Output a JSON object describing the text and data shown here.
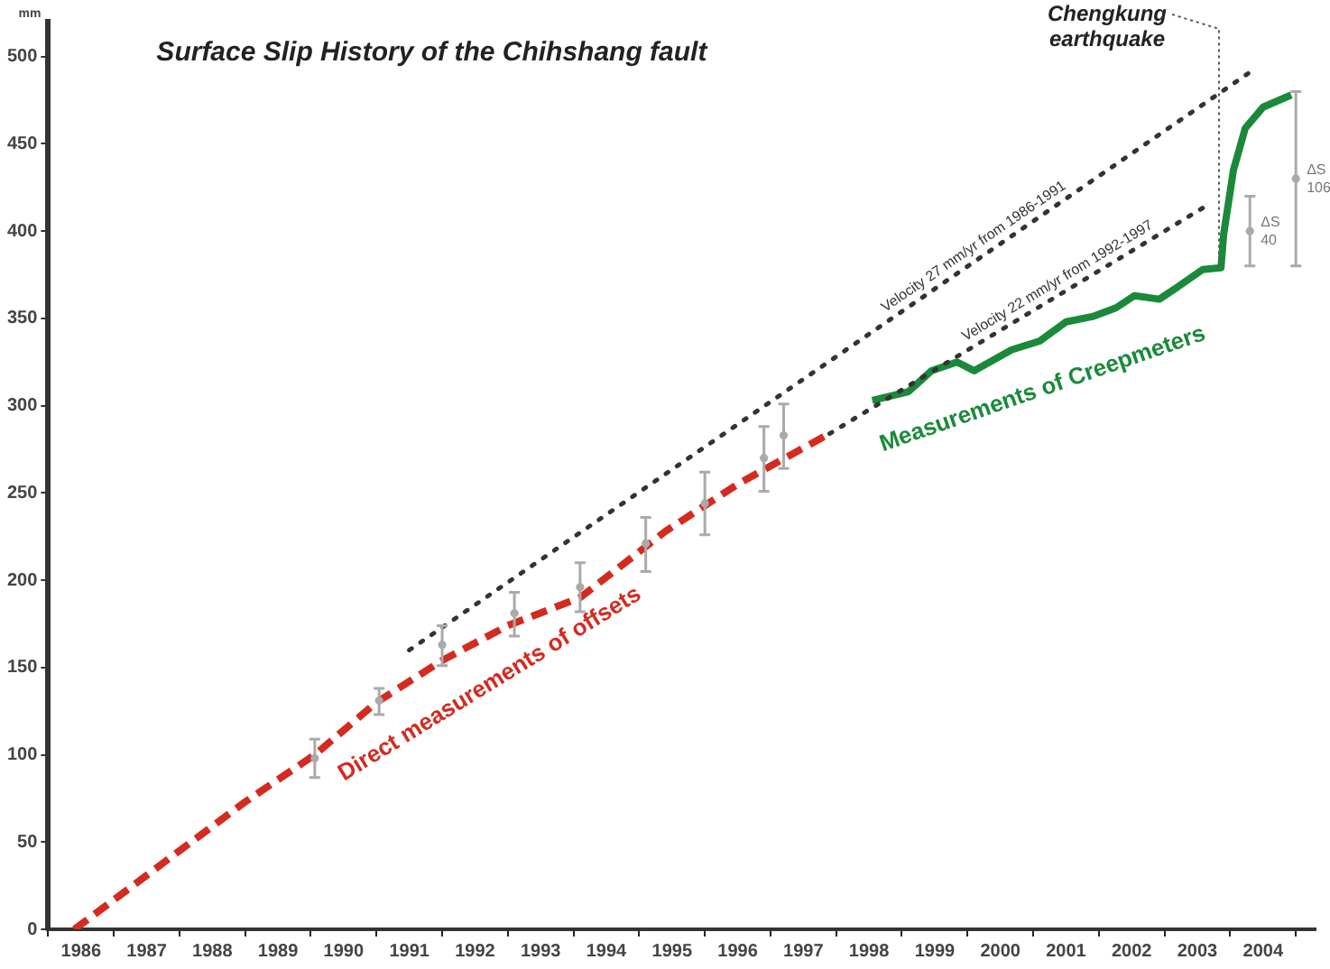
{
  "chart_data": {
    "type": "line",
    "title": "Surface Slip History of the Chihshang fault",
    "ylabel": "mm",
    "xlim": [
      1986,
      2005.3
    ],
    "xticks": [
      {
        "value": 1986,
        "label": null
      },
      {
        "value": 1986.5,
        "label": "1986"
      },
      {
        "value": 1987,
        "label": null
      },
      {
        "value": 1987.5,
        "label": "1987"
      },
      {
        "value": 1988,
        "label": null
      },
      {
        "value": 1988.5,
        "label": "1988"
      },
      {
        "value": 1989,
        "label": null
      },
      {
        "value": 1989.5,
        "label": "1989"
      },
      {
        "value": 1990,
        "label": null
      },
      {
        "value": 1990.5,
        "label": "1990"
      },
      {
        "value": 1991,
        "label": null
      },
      {
        "value": 1991.5,
        "label": "1991"
      },
      {
        "value": 1992,
        "label": null
      },
      {
        "value": 1992.5,
        "label": "1992"
      },
      {
        "value": 1993,
        "label": null
      },
      {
        "value": 1993.5,
        "label": "1993"
      },
      {
        "value": 1994,
        "label": null
      },
      {
        "value": 1994.5,
        "label": "1994"
      },
      {
        "value": 1995,
        "label": null
      },
      {
        "value": 1995.5,
        "label": "1995"
      },
      {
        "value": 1996,
        "label": null
      },
      {
        "value": 1996.5,
        "label": "1996"
      },
      {
        "value": 1997,
        "label": null
      },
      {
        "value": 1997.5,
        "label": "1997"
      },
      {
        "value": 1998,
        "label": null
      },
      {
        "value": 1998.5,
        "label": "1998"
      },
      {
        "value": 1999,
        "label": null
      },
      {
        "value": 1999.5,
        "label": "1999"
      },
      {
        "value": 2000,
        "label": null
      },
      {
        "value": 2000.5,
        "label": "2000"
      },
      {
        "value": 2001,
        "label": null
      },
      {
        "value": 2001.5,
        "label": "2001"
      },
      {
        "value": 2002,
        "label": null
      },
      {
        "value": 2002.5,
        "label": "2002"
      },
      {
        "value": 2003,
        "label": null
      },
      {
        "value": 2003.5,
        "label": "2003"
      },
      {
        "value": 2004,
        "label": null
      },
      {
        "value": 2004.5,
        "label": "2004"
      },
      {
        "value": 2005,
        "label": null
      }
    ],
    "ylim": [
      0,
      520
    ],
    "yticks": [
      0,
      50,
      100,
      150,
      200,
      250,
      300,
      350,
      400,
      450,
      500
    ],
    "series": [
      {
        "name": "Direct measurements of offsets",
        "color": "#d42a20",
        "line_style": "dashed",
        "x": [
          1986.4,
          1988,
          1989,
          1990.06,
          1991,
          1992,
          1993,
          1994.1,
          1995.4,
          1996.5,
          1997.9
        ],
        "values": [
          0,
          45,
          73,
          100,
          130,
          154,
          174,
          190,
          228,
          255,
          284
        ]
      },
      {
        "type": "scatter",
        "color": "#aaaaaa",
        "x": [
          1990.06,
          1991.04,
          1992,
          1993.1,
          1994.1,
          1995.1,
          1996,
          1996.9,
          1997.2
        ],
        "values": [
          98,
          131,
          163,
          181,
          196,
          221,
          244,
          270,
          283
        ],
        "errors": [
          [
            87,
            109
          ],
          [
            123,
            138
          ],
          [
            151,
            174
          ],
          [
            168,
            193
          ],
          [
            182,
            210
          ],
          [
            205,
            236
          ],
          [
            226,
            262
          ],
          [
            251,
            288
          ],
          [
            264,
            301
          ]
        ]
      },
      {
        "name": "Velocity 27 mm/yr from 1986-1991",
        "color": "#333333",
        "line_style": "dotted",
        "x": [
          1991.5,
          2004.3
        ],
        "values": [
          160,
          491
        ]
      },
      {
        "name": "Velocity 22 mm/yr from 1992-1997",
        "color": "#333333",
        "line_style": "dotted",
        "x": [
          1997.9,
          2003.66
        ],
        "values": [
          284,
          415
        ]
      },
      {
        "name": "Measurements of Creepmeters",
        "color": "#1a8a3a",
        "line_style": "solid",
        "x": [
          1998.55,
          1999.1,
          1999.45,
          1999.84,
          2000.1,
          2000.67,
          2001.1,
          2001.5,
          2001.9,
          2002.26,
          2002.54,
          2002.92,
          2003.2,
          2003.58,
          2003.86,
          2003.9,
          2004.05,
          2004.23,
          2004.5,
          2004.93
        ],
        "values": [
          303,
          308,
          320,
          325,
          320,
          332,
          337,
          348,
          351,
          356,
          363,
          361,
          368,
          378,
          379,
          398,
          435,
          459,
          471,
          478
        ]
      },
      {
        "type": "scatter",
        "color": "#aaaaaa",
        "x": [
          2004.3,
          2005
        ],
        "values": [
          400,
          430
        ],
        "errors": [
          [
            380,
            420
          ],
          [
            380,
            480
          ]
        ]
      }
    ],
    "annotations": [
      {
        "text": "Chengkung earthquake",
        "x": 2003.83,
        "y": 379
      },
      {
        "text": "ΔS 40",
        "x": 2004.3,
        "y": 400
      },
      {
        "text": "ΔS 106",
        "x": 2005,
        "y": 430
      }
    ]
  }
}
